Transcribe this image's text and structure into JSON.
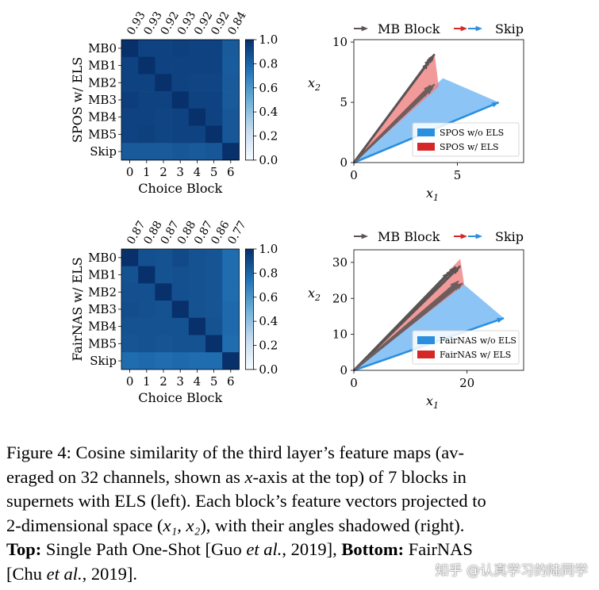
{
  "chart_data": [
    {
      "type": "heatmap",
      "ylabel": "SPOS w/ ELS",
      "xlabel": "Choice Block",
      "row_labels": [
        "MB0",
        "MB1",
        "MB2",
        "MB3",
        "MB4",
        "MB5",
        "Skip"
      ],
      "col_labels": [
        "0",
        "1",
        "2",
        "3",
        "4",
        "5",
        "6"
      ],
      "top_labels": [
        "0.93",
        "0.93",
        "0.92",
        "0.93",
        "0.92",
        "0.92",
        "0.84"
      ],
      "colorbar_ticks": [
        "1.0",
        "0.8",
        "0.6",
        "0.4",
        "0.2",
        "0.0"
      ],
      "vmin": 0,
      "vmax": 1,
      "values": [
        [
          1.0,
          0.93,
          0.93,
          0.94,
          0.93,
          0.93,
          0.84
        ],
        [
          0.93,
          1.0,
          0.93,
          0.93,
          0.93,
          0.93,
          0.83
        ],
        [
          0.93,
          0.93,
          1.0,
          0.93,
          0.92,
          0.92,
          0.84
        ],
        [
          0.95,
          0.93,
          0.93,
          1.0,
          0.93,
          0.93,
          0.84
        ],
        [
          0.93,
          0.93,
          0.92,
          0.93,
          1.0,
          0.93,
          0.85
        ],
        [
          0.93,
          0.94,
          0.92,
          0.93,
          0.93,
          1.0,
          0.85
        ],
        [
          0.84,
          0.84,
          0.84,
          0.85,
          0.84,
          0.85,
          1.0
        ]
      ]
    },
    {
      "type": "line",
      "legend_top": {
        "mb_label": "MB Block",
        "skip_label": "Skip"
      },
      "xlabel": "x1",
      "ylabel": "x2",
      "xlim": [
        0,
        8.2
      ],
      "ylim": [
        0,
        10.2
      ],
      "xticks": [
        0,
        5
      ],
      "yticks": [
        0,
        5,
        10
      ],
      "tick_labels_x": [
        "0",
        "5"
      ],
      "tick_labels_y": [
        "0",
        "5",
        "10"
      ],
      "legend": [
        "SPOS w/o ELS",
        "SPOS w/ ELS"
      ],
      "mb_wo": [
        [
          3.9,
          9.0
        ],
        [
          3.7,
          8.6
        ],
        [
          3.8,
          8.8
        ],
        [
          3.6,
          8.3
        ],
        [
          3.85,
          8.9
        ]
      ],
      "mb_w": [
        [
          3.8,
          6.2
        ],
        [
          3.7,
          6.4
        ],
        [
          3.6,
          6.0
        ],
        [
          3.9,
          6.5
        ],
        [
          3.75,
          6.3
        ]
      ],
      "skip_wo": [
        7.0,
        5.0
      ],
      "skip_w": [
        3.7,
        6.4
      ],
      "shade_wo": [
        [
          0,
          0
        ],
        [
          4.3,
          7.0
        ],
        [
          7.0,
          5.0
        ]
      ],
      "shade_w": [
        [
          0,
          0
        ],
        [
          3.9,
          9.0
        ],
        [
          4.1,
          6.3
        ]
      ]
    },
    {
      "type": "heatmap",
      "ylabel": "FairNAS w/ ELS",
      "xlabel": "Choice Block",
      "row_labels": [
        "MB0",
        "MB1",
        "MB2",
        "MB3",
        "MB4",
        "MB5",
        "Skip"
      ],
      "col_labels": [
        "0",
        "1",
        "2",
        "3",
        "4",
        "5",
        "6"
      ],
      "top_labels": [
        "0.87",
        "0.88",
        "0.87",
        "0.88",
        "0.87",
        "0.86",
        "0.77"
      ],
      "colorbar_ticks": [
        "1.0",
        "0.8",
        "0.6",
        "0.4",
        "0.2",
        "0.0"
      ],
      "vmin": 0,
      "vmax": 1,
      "values": [
        [
          1.0,
          0.88,
          0.87,
          0.9,
          0.87,
          0.86,
          0.77
        ],
        [
          0.87,
          1.0,
          0.87,
          0.88,
          0.87,
          0.86,
          0.77
        ],
        [
          0.88,
          0.88,
          1.0,
          0.88,
          0.87,
          0.86,
          0.77
        ],
        [
          0.89,
          0.88,
          0.87,
          1.0,
          0.87,
          0.86,
          0.78
        ],
        [
          0.87,
          0.87,
          0.87,
          0.87,
          1.0,
          0.87,
          0.78
        ],
        [
          0.86,
          0.87,
          0.86,
          0.87,
          0.87,
          1.0,
          0.77
        ],
        [
          0.77,
          0.78,
          0.77,
          0.78,
          0.77,
          0.77,
          1.0
        ]
      ]
    },
    {
      "type": "line",
      "legend_top": {
        "mb_label": "MB Block",
        "skip_label": "Skip"
      },
      "xlabel": "x1",
      "ylabel": "x2",
      "xlim": [
        0,
        30
      ],
      "ylim": [
        0,
        33.5
      ],
      "xticks": [
        0,
        20
      ],
      "yticks": [
        0,
        10,
        20,
        30
      ],
      "tick_labels_x": [
        "0",
        "20"
      ],
      "tick_labels_y": [
        "0",
        "10",
        "20",
        "30"
      ],
      "legend": [
        "FairNAS w/o ELS",
        "FairNAS w/ ELS"
      ],
      "mb_wo": [
        [
          18.5,
          28.5
        ],
        [
          17.5,
          28.0
        ],
        [
          18.0,
          28.8
        ],
        [
          16.8,
          27.2
        ],
        [
          18.8,
          29.0
        ]
      ],
      "mb_w": [
        [
          18.8,
          24.0
        ],
        [
          18.2,
          24.5
        ],
        [
          17.8,
          23.5
        ],
        [
          19.2,
          24.2
        ],
        [
          18.5,
          24.8
        ]
      ],
      "skip_wo": [
        26.5,
        14.5
      ],
      "skip_w": [
        18.5,
        24.0
      ],
      "shade_wo": [
        [
          0,
          0
        ],
        [
          19.0,
          24.5
        ],
        [
          26.5,
          14.5
        ]
      ],
      "shade_w": [
        [
          0,
          0
        ],
        [
          18.8,
          31.0
        ],
        [
          19.5,
          23.8
        ]
      ]
    }
  ],
  "caption": {
    "line1": "Figure 4:  Cosine similarity of the third layer’s feature maps (av-",
    "line2": "eraged on 32 channels, shown as ",
    "line2_var": "x",
    "line2_rest": "-axis at the top) of 7 blocks in",
    "line3": "supernets with ELS (left). Each block’s feature vectors projected to",
    "line4_a": "2-dimensional space (",
    "line4_vars": "x₁, x₂",
    "line4_b": "), with their angles shadowed (right).",
    "line5_bold1": "Top:",
    "line5_a": " Single Path One-Shot [Guo ",
    "line5_ital": "et al.",
    "line5_b": ", 2019], ",
    "line5_bold2": "Bottom:",
    "line5_c": " FairNAS",
    "line6_a": "[Chu ",
    "line6_ital": "et al.",
    "line6_b": ", 2019]."
  },
  "watermark": "知乎 @认真学习的陆同学"
}
